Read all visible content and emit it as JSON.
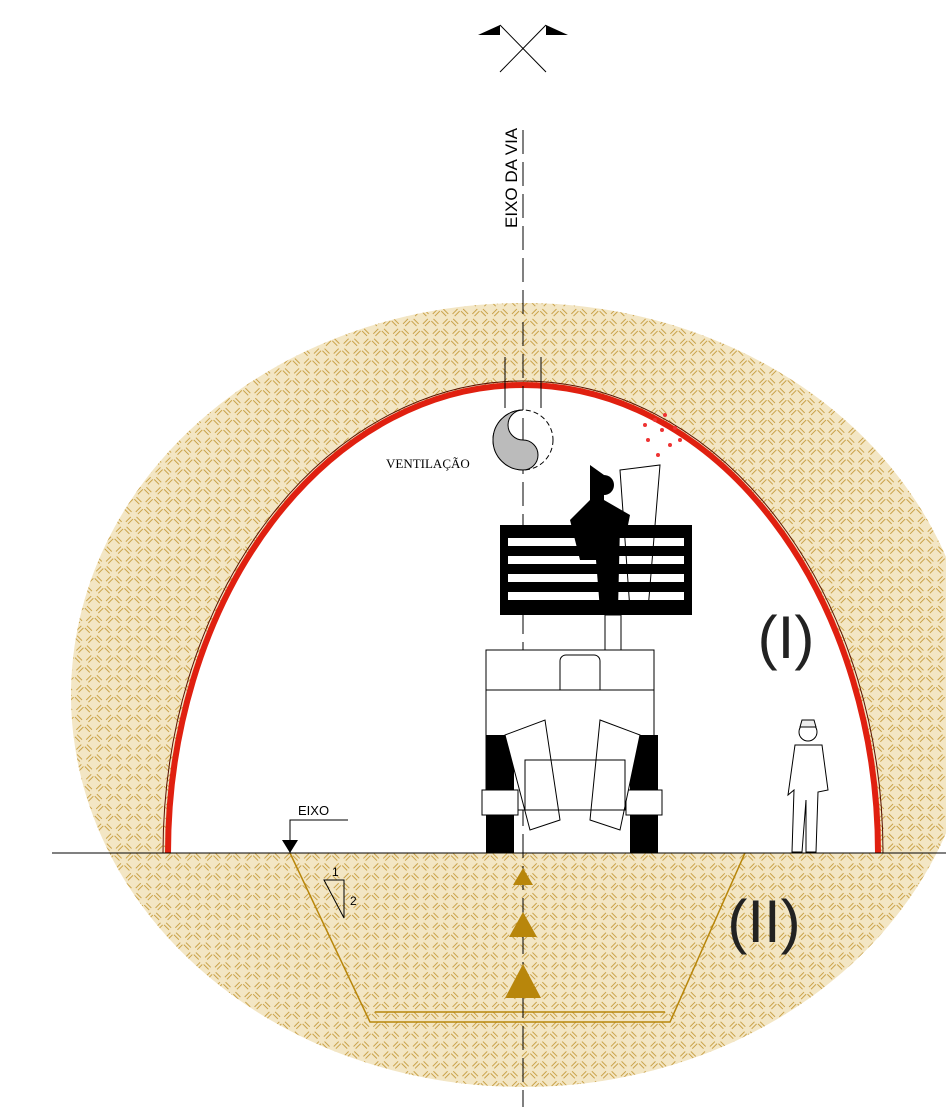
{
  "labels": {
    "axis": "EIXO DA VIA",
    "ventilation": "VENTILAÇÃO",
    "level": "EIXO",
    "slope_rise": "1",
    "slope_run": "2",
    "stage_1": "(I)",
    "stage_2": "(II)"
  }
}
